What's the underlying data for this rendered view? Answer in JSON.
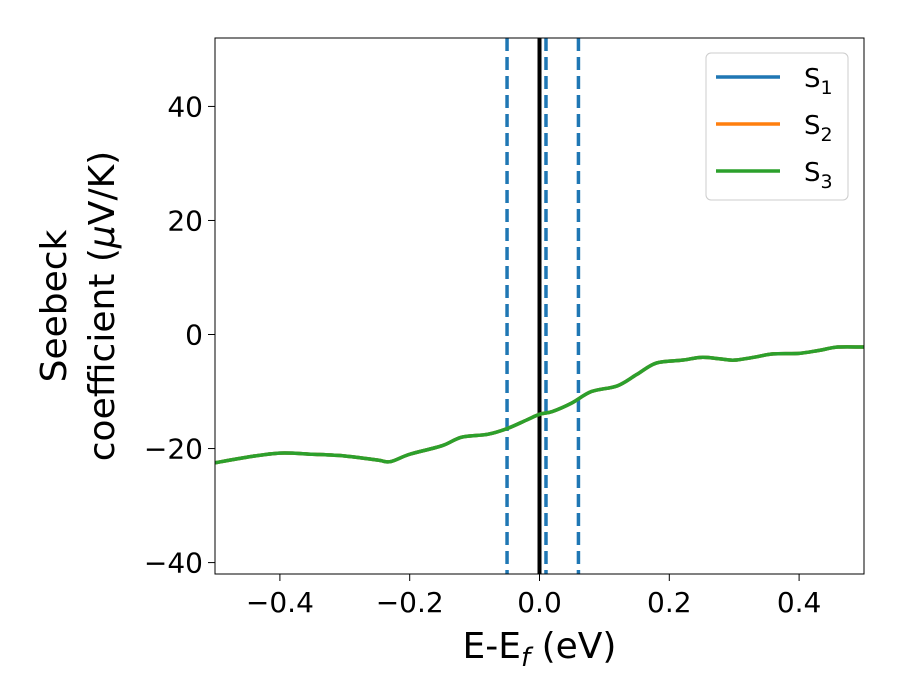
{
  "chart_data": {
    "type": "line",
    "title": "",
    "xlabel": {
      "main": "E-E",
      "sub": "f",
      "suffix": " (eV)"
    },
    "ylabel": {
      "line1": "Seebeck",
      "line2_prefix": "coefficient  (",
      "mu": "μ",
      "line2_suffix": "V/K)"
    },
    "xlim": [
      -0.5,
      0.5
    ],
    "ylim": [
      -42,
      52
    ],
    "xticks": [
      -0.4,
      -0.2,
      0.0,
      0.2,
      0.4
    ],
    "xtick_labels": [
      "−0.4",
      "−0.2",
      "0.0",
      "0.2",
      "0.4"
    ],
    "yticks": [
      -40,
      -20,
      0,
      20,
      40
    ],
    "ytick_labels": [
      "−40",
      "−20",
      "0",
      "20",
      "40"
    ],
    "grid": false,
    "legend_position": "top-right",
    "legend": [
      {
        "base": "S",
        "sub": "1",
        "color": "#1f77b4"
      },
      {
        "base": "S",
        "sub": "2",
        "color": "#ff7f0e"
      },
      {
        "base": "S",
        "sub": "3",
        "color": "#2ca02c"
      }
    ],
    "x": [
      -0.5,
      -0.45,
      -0.4,
      -0.35,
      -0.3,
      -0.25,
      -0.23,
      -0.2,
      -0.15,
      -0.12,
      -0.08,
      -0.05,
      -0.02,
      0.0,
      0.02,
      0.05,
      0.08,
      0.12,
      0.15,
      0.18,
      0.22,
      0.25,
      0.28,
      0.3,
      0.33,
      0.36,
      0.4,
      0.43,
      0.46,
      0.5
    ],
    "series": [
      {
        "color": "#1f77b4",
        "values": [
          -22.5,
          -21.5,
          -20.8,
          -21.0,
          -21.3,
          -22.0,
          -22.3,
          -21.0,
          -19.5,
          -18.0,
          -17.5,
          -16.5,
          -15.0,
          -14.0,
          -13.5,
          -12.0,
          -10.0,
          -9.0,
          -7.0,
          -5.0,
          -4.5,
          -4.0,
          -4.3,
          -4.5,
          -4.0,
          -3.4,
          -3.3,
          -2.8,
          -2.2,
          -2.2
        ]
      },
      {
        "color": "#ff7f0e",
        "values": [
          -22.5,
          -21.5,
          -20.8,
          -21.0,
          -21.3,
          -22.0,
          -22.3,
          -21.0,
          -19.5,
          -18.0,
          -17.5,
          -16.5,
          -15.0,
          -14.0,
          -13.5,
          -12.0,
          -10.0,
          -9.0,
          -7.0,
          -5.0,
          -4.5,
          -4.0,
          -4.3,
          -4.5,
          -4.0,
          -3.4,
          -3.3,
          -2.8,
          -2.2,
          -2.2
        ]
      },
      {
        "color": "#2ca02c",
        "values": [
          -22.5,
          -21.5,
          -20.8,
          -21.0,
          -21.3,
          -22.0,
          -22.3,
          -21.0,
          -19.5,
          -18.0,
          -17.5,
          -16.5,
          -15.0,
          -14.0,
          -13.5,
          -12.0,
          -10.0,
          -9.0,
          -7.0,
          -5.0,
          -4.5,
          -4.0,
          -4.3,
          -4.5,
          -4.0,
          -3.4,
          -3.3,
          -2.8,
          -2.2,
          -2.2
        ]
      }
    ],
    "vertical_lines": [
      {
        "x": 0.0,
        "style": "solid",
        "color": "#000000"
      },
      {
        "x": -0.05,
        "style": "dashed",
        "color": "#1f77b4"
      },
      {
        "x": 0.01,
        "style": "dashed",
        "color": "#1f77b4"
      },
      {
        "x": 0.06,
        "style": "dashed",
        "color": "#1f77b4"
      }
    ]
  }
}
